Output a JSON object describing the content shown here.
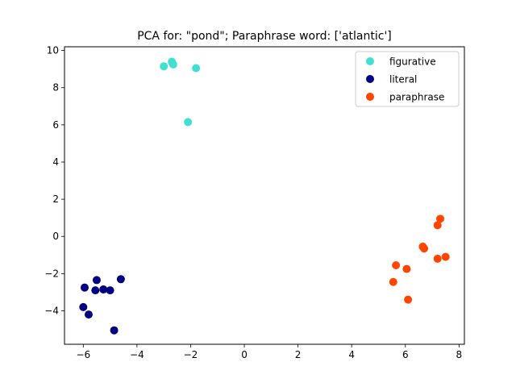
{
  "chart_data": {
    "type": "scatter",
    "title": "PCA for: \"pond\"; Paraphrase word: ['atlantic']",
    "xlabel": "",
    "ylabel": "",
    "xlim": [
      -6.7,
      8.2
    ],
    "ylim": [
      -5.8,
      10.2
    ],
    "xticks": [
      -6,
      -4,
      -2,
      0,
      2,
      4,
      6,
      8
    ],
    "yticks": [
      -4,
      -2,
      0,
      2,
      4,
      6,
      8,
      10
    ],
    "grid": false,
    "legend_position": "top-right",
    "series": [
      {
        "name": "figurative",
        "color": "#40e0d0",
        "points": [
          [
            -3.0,
            9.15
          ],
          [
            -2.7,
            9.4
          ],
          [
            -2.65,
            9.25
          ],
          [
            -1.8,
            9.05
          ],
          [
            -2.1,
            6.15
          ]
        ]
      },
      {
        "name": "literal",
        "color": "#000080",
        "points": [
          [
            -6.0,
            -3.8
          ],
          [
            -5.95,
            -2.75
          ],
          [
            -5.8,
            -4.2
          ],
          [
            -5.55,
            -2.9
          ],
          [
            -5.5,
            -2.35
          ],
          [
            -5.25,
            -2.85
          ],
          [
            -5.0,
            -2.9
          ],
          [
            -4.6,
            -2.3
          ],
          [
            -4.85,
            -5.05
          ]
        ]
      },
      {
        "name": "paraphrase",
        "color": "#ff4500",
        "points": [
          [
            5.55,
            -2.45
          ],
          [
            5.65,
            -1.55
          ],
          [
            6.05,
            -1.75
          ],
          [
            6.1,
            -3.4
          ],
          [
            6.65,
            -0.55
          ],
          [
            6.7,
            -0.65
          ],
          [
            7.2,
            0.6
          ],
          [
            7.3,
            0.95
          ],
          [
            7.2,
            -1.2
          ],
          [
            7.5,
            -1.1
          ]
        ]
      }
    ]
  }
}
